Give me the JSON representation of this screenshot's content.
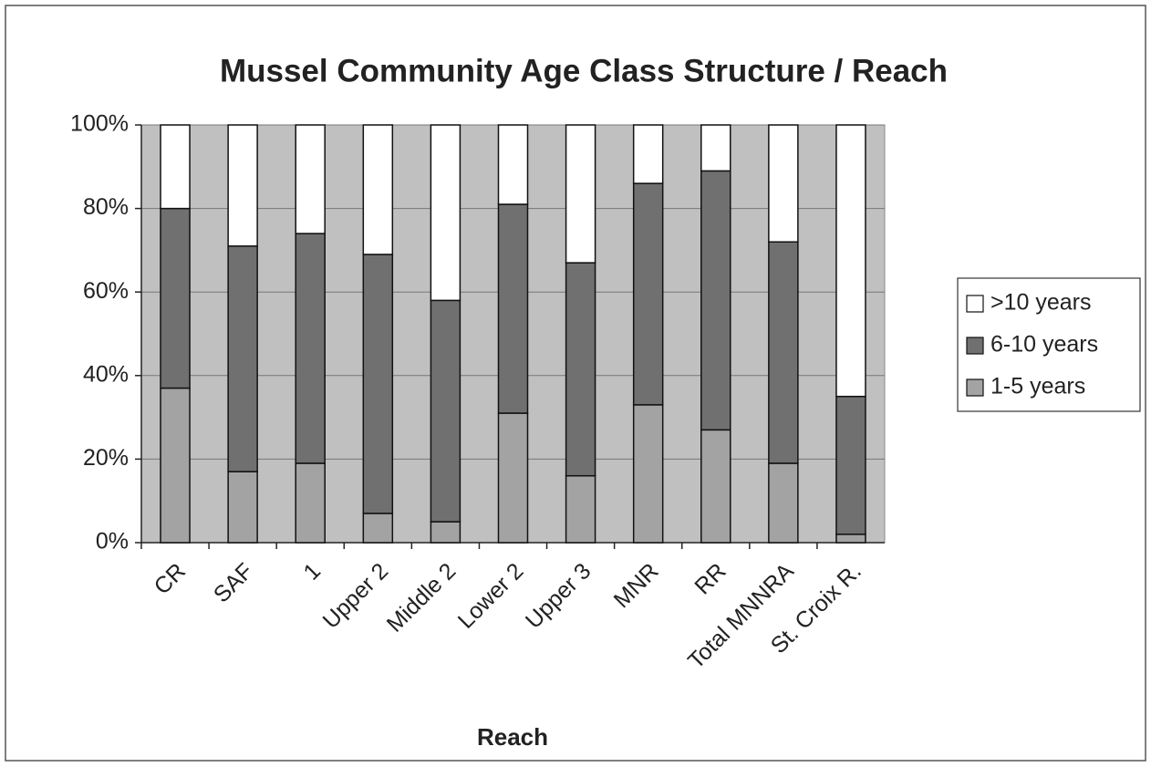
{
  "chart_data": {
    "type": "stacked_bar",
    "title": "Mussel Community Age Class Structure / Reach",
    "x_label": "Reach",
    "categories": [
      "CR",
      "SAF",
      "1",
      "Upper 2",
      "Middle 2",
      "Lower 2",
      "Upper 3",
      "MNR",
      "RR",
      "Total MNNRA",
      "St. Croix R."
    ],
    "series": [
      {
        "name": "1-5 years",
        "color": "#a3a3a3",
        "values": [
          37,
          17,
          19,
          7,
          5,
          31,
          16,
          33,
          27,
          19,
          2
        ]
      },
      {
        "name": "6-10 years",
        "color": "#707070",
        "values": [
          43,
          54,
          55,
          62,
          53,
          50,
          51,
          53,
          62,
          53,
          33
        ]
      },
      {
        "name": ">10 years",
        "color": "#ffffff",
        "values": [
          20,
          29,
          26,
          31,
          42,
          19,
          33,
          14,
          11,
          28,
          65
        ]
      }
    ],
    "ylim": [
      0,
      100
    ],
    "yticks": [
      {
        "value": 0,
        "label": "0%"
      },
      {
        "value": 20,
        "label": "20%"
      },
      {
        "value": 40,
        "label": "40%"
      },
      {
        "value": 60,
        "label": "60%"
      },
      {
        "value": 80,
        "label": "80%"
      },
      {
        "value": 100,
        "label": "100%"
      }
    ],
    "grid": true,
    "legend": "right"
  }
}
